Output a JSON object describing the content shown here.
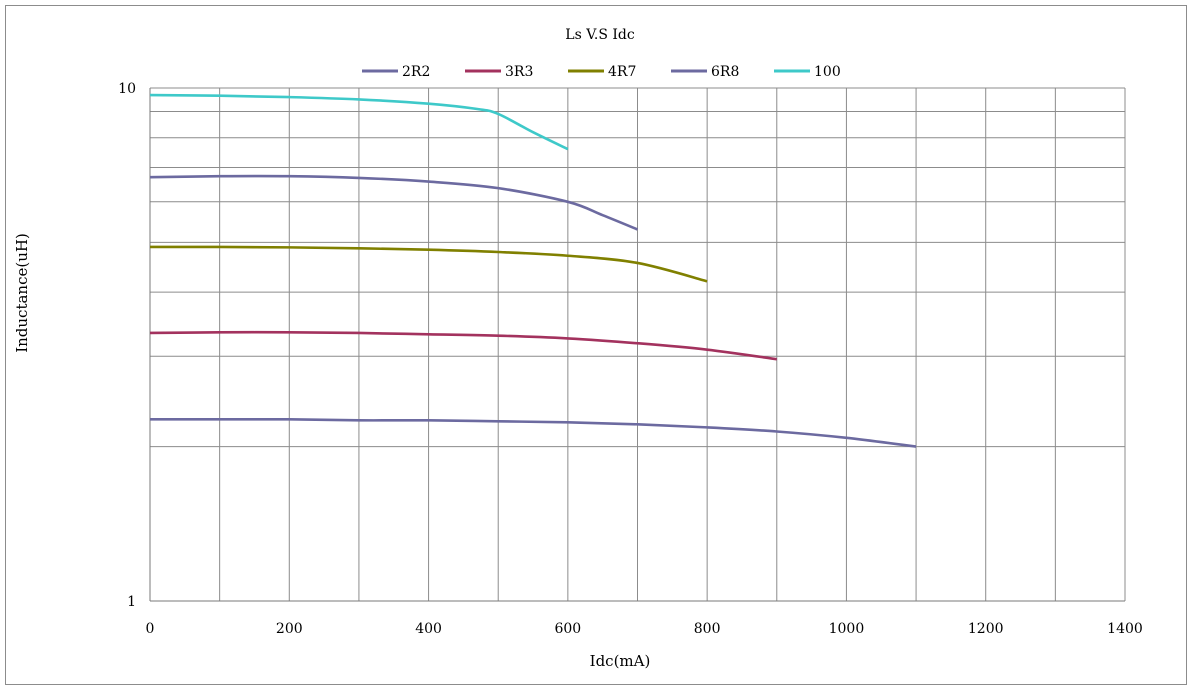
{
  "chart_data": {
    "type": "line",
    "title": "Ls V.S Idc",
    "xlabel": "Idc(mA)",
    "ylabel": "Inductance(uH)",
    "xlim": [
      0,
      1400
    ],
    "xticks": [
      0,
      200,
      400,
      600,
      800,
      1000,
      1200,
      1400
    ],
    "x_minor_step": 100,
    "ylim": [
      1,
      10
    ],
    "yscale": "log",
    "yticks": [
      1,
      10
    ],
    "grid": true,
    "legend": "top",
    "series": [
      {
        "name": "2R2",
        "color": "#6c6aa0",
        "points": [
          [
            0,
            2.26
          ],
          [
            100,
            2.26
          ],
          [
            200,
            2.26
          ],
          [
            300,
            2.25
          ],
          [
            400,
            2.25
          ],
          [
            500,
            2.24
          ],
          [
            600,
            2.23
          ],
          [
            700,
            2.21
          ],
          [
            800,
            2.18
          ],
          [
            900,
            2.14
          ],
          [
            1000,
            2.08
          ],
          [
            1100,
            2.0
          ]
        ]
      },
      {
        "name": "3R3",
        "color": "#a3325e",
        "points": [
          [
            0,
            3.33
          ],
          [
            100,
            3.34
          ],
          [
            200,
            3.34
          ],
          [
            300,
            3.33
          ],
          [
            400,
            3.31
          ],
          [
            500,
            3.29
          ],
          [
            600,
            3.25
          ],
          [
            700,
            3.18
          ],
          [
            800,
            3.09
          ],
          [
            900,
            2.96
          ]
        ]
      },
      {
        "name": "4R7",
        "color": "#808000",
        "points": [
          [
            0,
            4.9
          ],
          [
            100,
            4.9
          ],
          [
            200,
            4.89
          ],
          [
            300,
            4.87
          ],
          [
            400,
            4.84
          ],
          [
            500,
            4.79
          ],
          [
            600,
            4.71
          ],
          [
            700,
            4.56
          ],
          [
            800,
            4.2
          ]
        ]
      },
      {
        "name": "6R8",
        "color": "#6c6aa0",
        "points": [
          [
            0,
            6.7
          ],
          [
            100,
            6.73
          ],
          [
            200,
            6.73
          ],
          [
            300,
            6.68
          ],
          [
            400,
            6.57
          ],
          [
            500,
            6.38
          ],
          [
            600,
            6.0
          ],
          [
            650,
            5.65
          ],
          [
            700,
            5.3
          ]
        ]
      },
      {
        "name": "100",
        "color": "#3ec9c9",
        "points": [
          [
            0,
            9.69
          ],
          [
            100,
            9.66
          ],
          [
            200,
            9.6
          ],
          [
            300,
            9.5
          ],
          [
            400,
            9.32
          ],
          [
            470,
            9.1
          ],
          [
            500,
            8.9
          ],
          [
            550,
            8.2
          ],
          [
            600,
            7.6
          ]
        ]
      }
    ]
  }
}
